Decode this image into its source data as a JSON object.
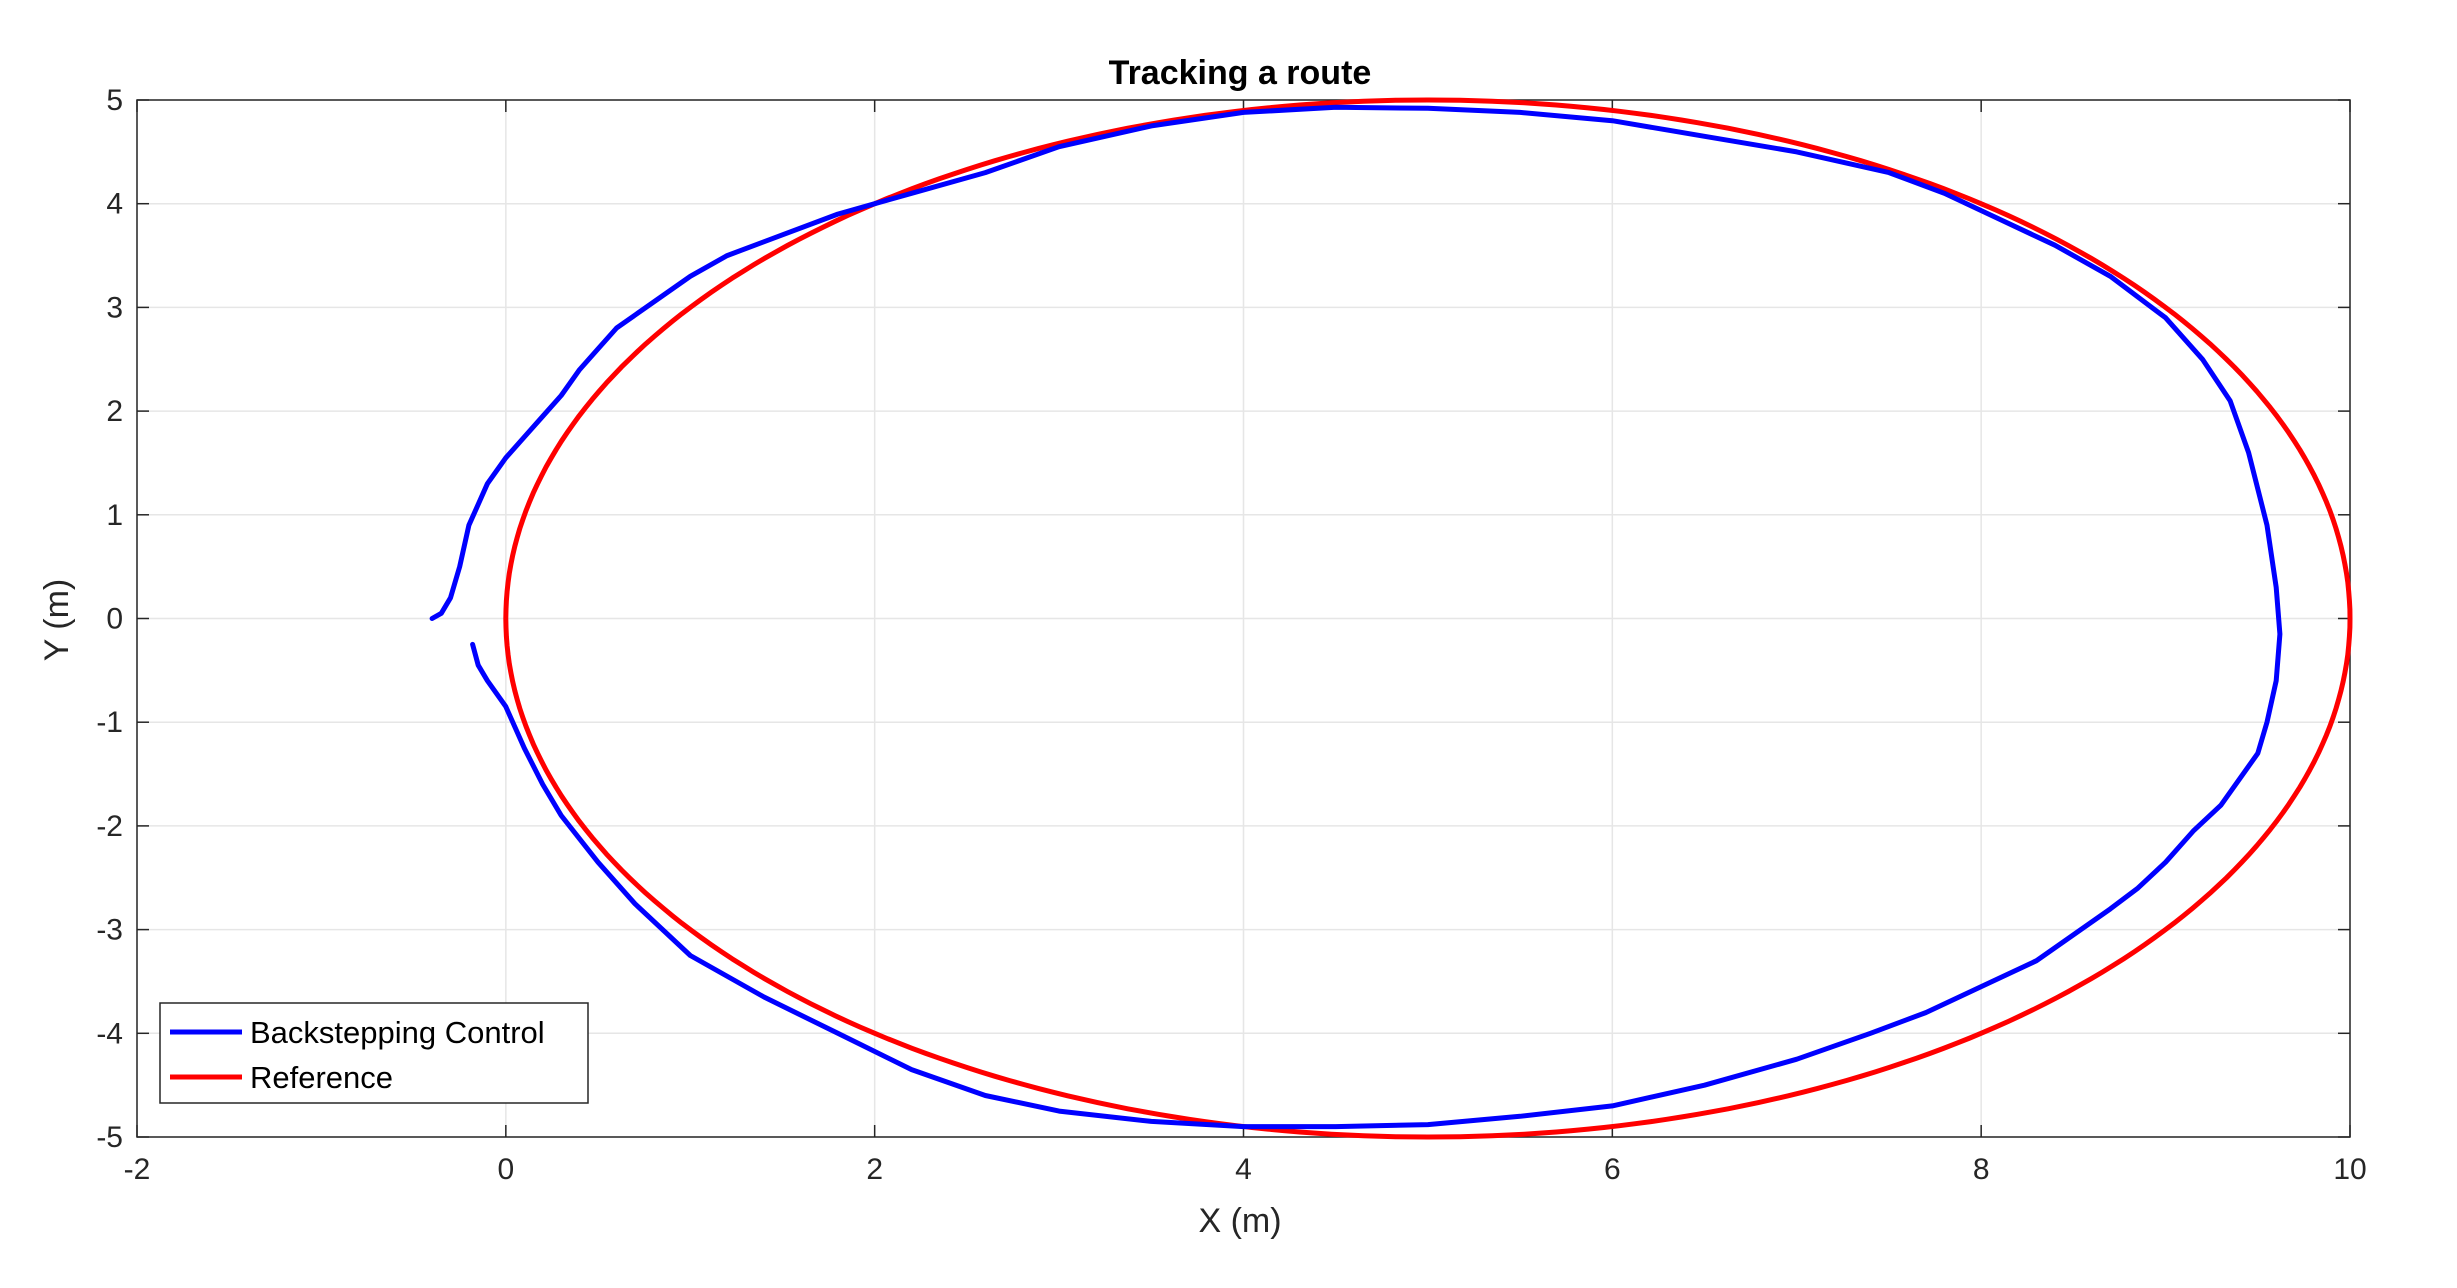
{
  "chart_data": {
    "type": "line",
    "title": "Tracking a route",
    "xlabel": "X (m)",
    "ylabel": "Y (m)",
    "xlim": [
      -2,
      10
    ],
    "ylim": [
      -5,
      5
    ],
    "xticks": [
      -2,
      0,
      2,
      4,
      6,
      8,
      10
    ],
    "yticks": [
      -5,
      -4,
      -3,
      -2,
      -1,
      0,
      1,
      2,
      3,
      4,
      5
    ],
    "grid": true,
    "legend_position": "bottom-left",
    "colors": {
      "backstepping": "#0000ff",
      "reference": "#ff0000",
      "grid": "#e6e6e6",
      "axis": "#262626"
    },
    "series": [
      {
        "name": "Backstepping Control",
        "color": "#0000ff",
        "x": [
          -0.4,
          -0.35,
          -0.3,
          -0.25,
          -0.2,
          -0.15,
          -0.1,
          0.0,
          0.1,
          0.2,
          0.3,
          0.4,
          0.5,
          0.6,
          0.8,
          1.0,
          1.2,
          1.5,
          1.8,
          2.2,
          2.6,
          3.0,
          3.5,
          4.0,
          4.5,
          5.0,
          5.5,
          6.0,
          6.5,
          7.0,
          7.5,
          7.8,
          8.1,
          8.4,
          8.7,
          9.0,
          9.2,
          9.35,
          9.45,
          9.55,
          9.6,
          9.62,
          9.6,
          9.55,
          9.5,
          9.4,
          9.3,
          9.15,
          9.0,
          8.85,
          8.7,
          8.5,
          8.3,
          8.0,
          7.7,
          7.4,
          7.0,
          6.5,
          6.0,
          5.5,
          5.0,
          4.5,
          4.0,
          3.5,
          3.0,
          2.6,
          2.2,
          1.8,
          1.4,
          1.0,
          0.7,
          0.5,
          0.3,
          0.2,
          0.1,
          0.0,
          -0.1,
          -0.15,
          -0.18
        ],
        "y": [
          0.0,
          0.05,
          0.2,
          0.5,
          0.9,
          1.1,
          1.3,
          1.55,
          1.75,
          1.95,
          2.15,
          2.4,
          2.6,
          2.8,
          3.05,
          3.3,
          3.5,
          3.7,
          3.9,
          4.1,
          4.3,
          4.55,
          4.75,
          4.88,
          4.93,
          4.92,
          4.88,
          4.8,
          4.65,
          4.5,
          4.3,
          4.1,
          3.85,
          3.6,
          3.3,
          2.9,
          2.5,
          2.1,
          1.6,
          0.9,
          0.3,
          -0.15,
          -0.6,
          -1.0,
          -1.3,
          -1.55,
          -1.8,
          -2.05,
          -2.35,
          -2.6,
          -2.8,
          -3.05,
          -3.3,
          -3.55,
          -3.8,
          -4.0,
          -4.25,
          -4.5,
          -4.7,
          -4.8,
          -4.88,
          -4.9,
          -4.9,
          -4.85,
          -4.75,
          -4.6,
          -4.35,
          -4.0,
          -3.65,
          -3.25,
          -2.75,
          -2.35,
          -1.9,
          -1.6,
          -1.25,
          -0.85,
          -0.6,
          -0.45,
          -0.25
        ]
      },
      {
        "name": "Reference",
        "color": "#ff0000",
        "ellipse": {
          "cx": 5,
          "cy": 0,
          "rx": 5,
          "ry": 5
        }
      }
    ]
  }
}
